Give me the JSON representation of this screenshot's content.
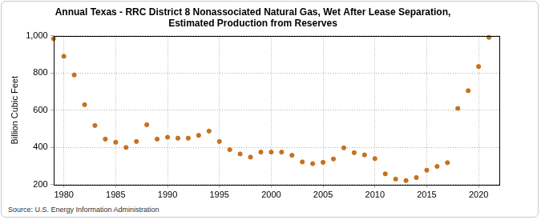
{
  "chart_data": {
    "type": "scatter",
    "title": [
      "Annual Texas - RRC District 8 Nonassociated Natural Gas, Wet After Lease Separation,",
      "Estimated Production from Reserves"
    ],
    "y_label": "Billion Cubic Feet",
    "annotations": [
      "Source: U.S. Energy Information Administration"
    ],
    "x": [
      1979,
      1980,
      1981,
      1982,
      1983,
      1984,
      1985,
      1986,
      1987,
      1988,
      1989,
      1990,
      1991,
      1992,
      1993,
      1994,
      1995,
      1996,
      1997,
      1998,
      1999,
      2000,
      2001,
      2002,
      2003,
      2004,
      2005,
      2006,
      2007,
      2008,
      2009,
      2010,
      2011,
      2012,
      2013,
      2014,
      2015,
      2016,
      2017,
      2018,
      2019,
      2020,
      2021
    ],
    "values": [
      985,
      890,
      790,
      630,
      518,
      445,
      428,
      400,
      432,
      522,
      445,
      455,
      450,
      450,
      465,
      488,
      432,
      388,
      365,
      348,
      375,
      375,
      375,
      358,
      322,
      313,
      320,
      338,
      398,
      372,
      360,
      340,
      258,
      230,
      222,
      238,
      278,
      298,
      318,
      610,
      705,
      835,
      992
    ],
    "color": "#c8701e",
    "marker": "circle",
    "xlim": [
      1979,
      2022
    ],
    "xticks": [
      1980,
      1985,
      1990,
      1995,
      2000,
      2005,
      2010,
      2015,
      2020
    ],
    "ylim": [
      200,
      1000
    ],
    "yticks": [
      200,
      400,
      600,
      800,
      {
        "value": 1000,
        "label": "1,000"
      }
    ],
    "grid": true
  }
}
